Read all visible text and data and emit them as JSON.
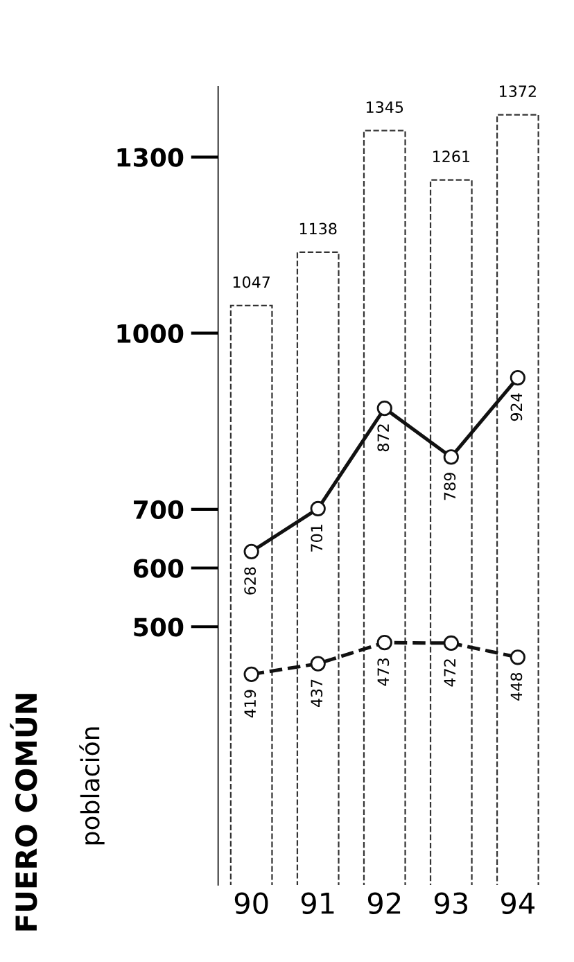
{
  "chart_data": {
    "type": "bar",
    "title": "FUERO COMÚN",
    "ylabel": "población",
    "categories": [
      "90",
      "91",
      "92",
      "93",
      "94"
    ],
    "series": [
      {
        "color": "#333333",
        "values": [
          1047,
          1138,
          1345,
          1261,
          1372
        ]
      },
      {
        "type": "line",
        "color": "#111111",
        "line_style": "solid",
        "values": [
          628,
          701,
          872,
          789,
          924
        ]
      },
      {
        "type": "line",
        "color": "#111111",
        "line_style": "dashed",
        "values": [
          419,
          437,
          473,
          472,
          448
        ]
      }
    ],
    "ylim": [
      60,
      1420
    ],
    "yticks": [
      500,
      600,
      700,
      1000,
      1300
    ],
    "marker": "circle",
    "data_labels": true,
    "grid": false,
    "legend": false
  }
}
